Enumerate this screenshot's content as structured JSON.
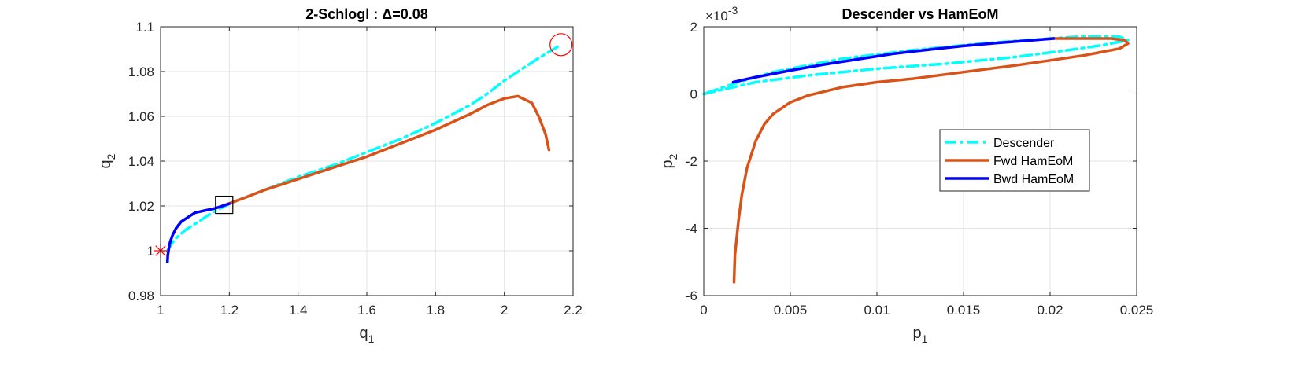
{
  "chart_data": [
    {
      "type": "line",
      "title": "2-Schlogl : Δ=0.08",
      "xlabel": "q",
      "xlabel_sub": "1",
      "ylabel": "q",
      "ylabel_sub": "2",
      "xlim": [
        1,
        2.2
      ],
      "ylim": [
        0.98,
        1.1
      ],
      "xticks": [
        1,
        1.2,
        1.4,
        1.6,
        1.8,
        2,
        2.2
      ],
      "xtick_labels": [
        "1",
        "1.2",
        "1.4",
        "1.6",
        "1.8",
        "2",
        "2.2"
      ],
      "yticks": [
        0.98,
        1,
        1.02,
        1.04,
        1.06,
        1.08,
        1.1
      ],
      "ytick_labels": [
        "0.98",
        "1",
        "1.02",
        "1.04",
        "1.06",
        "1.08",
        "1.1"
      ],
      "grid": true,
      "colors": {
        "descender": "#00FFFF",
        "fwd": "#D95319",
        "bwd": "#0000FF",
        "marker": "#FF0000",
        "box": "#000000"
      },
      "series": [
        {
          "key": "descender",
          "style": "dashdot",
          "x": [
            1.02,
            1.04,
            1.07,
            1.1,
            1.15,
            1.2,
            1.3,
            1.4,
            1.5,
            1.6,
            1.7,
            1.8,
            1.9,
            1.95,
            2.0,
            2.05,
            2.1,
            2.165
          ],
          "y": [
            1.0,
            1.005,
            1.009,
            1.012,
            1.017,
            1.021,
            1.027,
            1.033,
            1.038,
            1.044,
            1.05,
            1.057,
            1.065,
            1.07,
            1.076,
            1.081,
            1.086,
            1.092
          ]
        },
        {
          "key": "fwd",
          "style": "solid",
          "x": [
            1.18,
            1.25,
            1.3,
            1.4,
            1.5,
            1.6,
            1.7,
            1.8,
            1.9,
            1.95,
            2.0,
            2.04,
            2.08,
            2.1,
            2.12,
            2.13
          ],
          "y": [
            1.02,
            1.024,
            1.027,
            1.032,
            1.037,
            1.042,
            1.048,
            1.054,
            1.061,
            1.065,
            1.068,
            1.069,
            1.066,
            1.06,
            1.052,
            1.045
          ]
        },
        {
          "key": "bwd",
          "style": "solid",
          "x": [
            1.02,
            1.021,
            1.024,
            1.028,
            1.035,
            1.045,
            1.06,
            1.08,
            1.1,
            1.13,
            1.16,
            1.18,
            1.2
          ],
          "y": [
            0.995,
            0.998,
            1.001,
            1.004,
            1.007,
            1.01,
            1.013,
            1.015,
            1.017,
            1.018,
            1.019,
            1.02,
            1.021
          ]
        }
      ],
      "markers": [
        {
          "type": "asterisk",
          "x": 1.0,
          "y": 1.0,
          "color": "#FF0000"
        },
        {
          "type": "circle",
          "x": 2.165,
          "y": 1.092,
          "color": "#FF0000"
        },
        {
          "type": "square",
          "x": 1.185,
          "y": 1.0205,
          "color": "#000000"
        }
      ]
    },
    {
      "type": "line",
      "title": "Descender vs HamEoM",
      "xlabel": "p",
      "xlabel_sub": "1",
      "ylabel": "p",
      "ylabel_sub": "2",
      "y_exponent": "×10",
      "y_exponent_power": "-3",
      "xlim": [
        0,
        0.025
      ],
      "ylim": [
        -6,
        2
      ],
      "xticks": [
        0,
        0.005,
        0.01,
        0.015,
        0.02,
        0.025
      ],
      "xtick_labels": [
        "0",
        "0.005",
        "0.01",
        "0.015",
        "0.02",
        "0.025"
      ],
      "yticks": [
        -6,
        -4,
        -2,
        0,
        2
      ],
      "ytick_labels": [
        "-6",
        "-4",
        "-2",
        "0",
        "2"
      ],
      "grid": true,
      "legend_position": "center-right",
      "legend": [
        {
          "key": "descender",
          "label": "Descender",
          "style": "dashdot",
          "color": "#00FFFF"
        },
        {
          "key": "fwd",
          "label": "Fwd HamEoM",
          "style": "solid",
          "color": "#D95319"
        },
        {
          "key": "bwd",
          "label": "Bwd HamEoM",
          "style": "solid",
          "color": "#0000FF"
        }
      ],
      "series": [
        {
          "key": "descender",
          "style": "dashdot",
          "x": [
            0.0,
            0.003,
            0.006,
            0.01,
            0.014,
            0.018,
            0.021,
            0.023,
            0.0245,
            0.024,
            0.022,
            0.02,
            0.016,
            0.012,
            0.008,
            0.004,
            0.002,
            0.0
          ],
          "y": [
            0.0,
            0.35,
            0.55,
            0.75,
            0.9,
            1.1,
            1.3,
            1.45,
            1.6,
            1.7,
            1.72,
            1.65,
            1.5,
            1.3,
            1.05,
            0.65,
            0.35,
            0.0
          ]
        },
        {
          "key": "fwd",
          "style": "solid",
          "x": [
            0.00175,
            0.0018,
            0.002,
            0.0022,
            0.0025,
            0.003,
            0.0035,
            0.004,
            0.005,
            0.006,
            0.008,
            0.01,
            0.012,
            0.015,
            0.018,
            0.02,
            0.022,
            0.024,
            0.0245,
            0.0243,
            0.0235,
            0.022,
            0.0205,
            0.0202
          ],
          "y": [
            -5.6,
            -4.8,
            -3.8,
            -3.0,
            -2.2,
            -1.4,
            -0.9,
            -0.6,
            -0.25,
            -0.05,
            0.2,
            0.35,
            0.45,
            0.65,
            0.85,
            1.0,
            1.15,
            1.35,
            1.5,
            1.6,
            1.65,
            1.65,
            1.65,
            1.65
          ]
        },
        {
          "key": "bwd",
          "style": "solid",
          "x": [
            0.0017,
            0.003,
            0.005,
            0.007,
            0.009,
            0.011,
            0.013,
            0.015,
            0.017,
            0.019,
            0.0202
          ],
          "y": [
            0.35,
            0.5,
            0.7,
            0.88,
            1.04,
            1.2,
            1.32,
            1.43,
            1.52,
            1.6,
            1.65
          ]
        }
      ]
    }
  ]
}
